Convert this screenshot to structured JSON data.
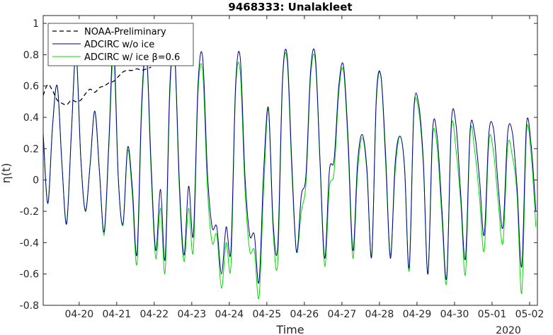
{
  "chart_data": {
    "type": "line",
    "title": "9468333: Unalakleet",
    "xlabel": "Time",
    "ylabel": "η(t)",
    "year_label": "2020",
    "xlim": [
      "2020-04-19T01:00",
      "2020-05-02T05:00"
    ],
    "ylim": [
      -0.8,
      1.05
    ],
    "x_ticks": [
      {
        "date": "2020-04-20",
        "label": "04-20"
      },
      {
        "date": "2020-04-21",
        "label": "04-21"
      },
      {
        "date": "2020-04-22",
        "label": "04-22"
      },
      {
        "date": "2020-04-23",
        "label": "04-23"
      },
      {
        "date": "2020-04-24",
        "label": "04-24"
      },
      {
        "date": "2020-04-25",
        "label": "04-25"
      },
      {
        "date": "2020-04-26",
        "label": "04-26"
      },
      {
        "date": "2020-04-27",
        "label": "04-27"
      },
      {
        "date": "2020-04-28",
        "label": "04-28"
      },
      {
        "date": "2020-04-29",
        "label": "04-29"
      },
      {
        "date": "2020-04-30",
        "label": "04-30"
      },
      {
        "date": "2020-05-01",
        "label": "05-01"
      },
      {
        "date": "2020-05-02",
        "label": "05-02"
      }
    ],
    "y_ticks": [
      {
        "value": -0.8,
        "label": "-0.8"
      },
      {
        "value": -0.6,
        "label": "-0.6"
      },
      {
        "value": -0.4,
        "label": "-0.4"
      },
      {
        "value": -0.2,
        "label": "-0.2"
      },
      {
        "value": 0,
        "label": "0"
      },
      {
        "value": 0.2,
        "label": "0.2"
      },
      {
        "value": 0.4,
        "label": "0.4"
      },
      {
        "value": 0.6,
        "label": "0.6"
      },
      {
        "value": 0.8,
        "label": "0.8"
      },
      {
        "value": 1,
        "label": "1"
      }
    ],
    "grid": false,
    "legend_position": "top-left",
    "series": [
      {
        "name": "NOAA-Preliminary",
        "color": "#000000",
        "dash": "dashed",
        "x": [
          "2020-04-19T01:00",
          "2020-04-19T04:00",
          "2020-04-19T07:00",
          "2020-04-19T10:00",
          "2020-04-19T13:00",
          "2020-04-19T16:00",
          "2020-04-19T19:00",
          "2020-04-19T22:00",
          "2020-04-20T01:00",
          "2020-04-20T04:00",
          "2020-04-20T07:00",
          "2020-04-20T10:00",
          "2020-04-20T13:00",
          "2020-04-20T16:00",
          "2020-04-20T19:00",
          "2020-04-20T22:00",
          "2020-04-21T01:00",
          "2020-04-21T04:00",
          "2020-04-21T07:00",
          "2020-04-21T10:00",
          "2020-04-21T13:00",
          "2020-04-21T16:00",
          "2020-04-21T19:00",
          "2020-04-21T22:00"
        ],
        "y": [
          0.54,
          0.61,
          0.57,
          0.51,
          0.49,
          0.48,
          0.51,
          0.5,
          0.51,
          0.55,
          0.58,
          0.56,
          0.59,
          0.6,
          0.62,
          0.63,
          0.66,
          0.69,
          0.7,
          0.7,
          0.71,
          0.7,
          0.71,
          0.72
        ]
      },
      {
        "name": "ADCIRC w/o ice",
        "color": "#00008b",
        "dash": "solid",
        "x": [
          "2020-04-19T01:00",
          "2020-04-19T04:00",
          "2020-04-19T07:00",
          "2020-04-19T10:00",
          "2020-04-19T13:00",
          "2020-04-19T16:00",
          "2020-04-19T19:00",
          "2020-04-19T22:00",
          "2020-04-20T01:00",
          "2020-04-20T04:00",
          "2020-04-20T07:00",
          "2020-04-20T10:00",
          "2020-04-20T13:00",
          "2020-04-20T16:00",
          "2020-04-20T19:00",
          "2020-04-20T22:00",
          "2020-04-21T01:00",
          "2020-04-21T04:00",
          "2020-04-21T07:00",
          "2020-04-21T10:00",
          "2020-04-21T13:00",
          "2020-04-21T16:00",
          "2020-04-21T19:00",
          "2020-04-21T22:00",
          "2020-04-22T01:00",
          "2020-04-22T04:00",
          "2020-04-22T07:00",
          "2020-04-22T10:00",
          "2020-04-22T13:00",
          "2020-04-22T16:00",
          "2020-04-22T19:00",
          "2020-04-22T22:00",
          "2020-04-23T01:00",
          "2020-04-23T04:00",
          "2020-04-23T07:00",
          "2020-04-23T10:00",
          "2020-04-23T13:00",
          "2020-04-23T16:00",
          "2020-04-23T19:00",
          "2020-04-23T22:00",
          "2020-04-24T01:00",
          "2020-04-24T04:00",
          "2020-04-24T07:00",
          "2020-04-24T10:00",
          "2020-04-24T13:00",
          "2020-04-24T16:00",
          "2020-04-24T19:00",
          "2020-04-24T22:00",
          "2020-04-25T01:00",
          "2020-04-25T04:00",
          "2020-04-25T07:00",
          "2020-04-25T10:00",
          "2020-04-25T13:00",
          "2020-04-25T16:00",
          "2020-04-25T19:00",
          "2020-04-25T22:00",
          "2020-04-26T01:00",
          "2020-04-26T04:00",
          "2020-04-26T07:00",
          "2020-04-26T10:00",
          "2020-04-26T13:00",
          "2020-04-26T16:00",
          "2020-04-26T19:00",
          "2020-04-26T22:00",
          "2020-04-27T01:00",
          "2020-04-27T04:00",
          "2020-04-27T07:00",
          "2020-04-27T10:00",
          "2020-04-27T13:00",
          "2020-04-27T16:00",
          "2020-04-27T19:00",
          "2020-04-27T22:00",
          "2020-04-28T01:00",
          "2020-04-28T04:00",
          "2020-04-28T07:00",
          "2020-04-28T10:00",
          "2020-04-28T13:00",
          "2020-04-28T16:00",
          "2020-04-28T19:00",
          "2020-04-28T22:00",
          "2020-04-29T01:00",
          "2020-04-29T04:00",
          "2020-04-29T07:00",
          "2020-04-29T10:00",
          "2020-04-29T13:00",
          "2020-04-29T16:00",
          "2020-04-29T19:00",
          "2020-04-29T22:00",
          "2020-04-30T01:00",
          "2020-04-30T04:00",
          "2020-04-30T07:00",
          "2020-04-30T10:00",
          "2020-04-30T13:00",
          "2020-04-30T16:00",
          "2020-04-30T19:00",
          "2020-04-30T22:00",
          "2020-05-01T01:00",
          "2020-05-01T04:00",
          "2020-05-01T07:00",
          "2020-05-01T10:00",
          "2020-05-01T13:00",
          "2020-05-01T16:00",
          "2020-05-01T19:00",
          "2020-05-01T22:00",
          "2020-05-02T01:00",
          "2020-05-02T04:00"
        ],
        "y": [
          0.3,
          -0.15,
          0.35,
          0.6,
          0.1,
          -0.28,
          0.3,
          0.82,
          0.15,
          -0.2,
          0.1,
          0.44,
          0.05,
          -0.33,
          0.25,
          0.88,
          0.02,
          -0.28,
          0.21,
          -0.05,
          -0.47,
          0.5,
          0.82,
          0.1,
          -0.45,
          -0.06,
          -0.5,
          0.6,
          0.82,
          0.0,
          -0.48,
          -0.04,
          -0.35,
          0.61,
          0.78,
          0.05,
          -0.3,
          -0.3,
          -0.6,
          -0.3,
          -0.45,
          0.6,
          0.78,
          0.03,
          -0.35,
          -0.35,
          -0.65,
          0.06,
          0.46,
          -0.27,
          -0.42,
          0.64,
          0.79,
          0.1,
          -0.46,
          -0.1,
          0.03,
          0.7,
          0.79,
          0.12,
          -0.5,
          0.06,
          0.13,
          0.6,
          0.73,
          0.25,
          -0.45,
          0.11,
          0.29,
          0.07,
          -0.49,
          0.53,
          0.66,
          0.15,
          -0.5,
          0.1,
          0.28,
          0.09,
          -0.56,
          0.45,
          0.49,
          0.13,
          -0.6,
          0.32,
          0.27,
          -0.2,
          -0.62,
          0.37,
          0.35,
          -0.1,
          -0.5,
          0.32,
          0.29,
          0.0,
          -0.35,
          0.3,
          0.32,
          -0.05,
          -0.3,
          0.3,
          0.3,
          -0.05,
          -0.55,
          0.35,
          0.22,
          -0.2
        ]
      },
      {
        "name": "ADCIRC w/ ice β=0.6",
        "color": "#00dd00",
        "dash": "solid",
        "x": [
          "2020-04-19T01:00",
          "2020-04-19T04:00",
          "2020-04-19T07:00",
          "2020-04-19T10:00",
          "2020-04-19T13:00",
          "2020-04-19T16:00",
          "2020-04-19T19:00",
          "2020-04-19T22:00",
          "2020-04-20T01:00",
          "2020-04-20T04:00",
          "2020-04-20T07:00",
          "2020-04-20T10:00",
          "2020-04-20T13:00",
          "2020-04-20T16:00",
          "2020-04-20T19:00",
          "2020-04-20T22:00",
          "2020-04-21T01:00",
          "2020-04-21T04:00",
          "2020-04-21T07:00",
          "2020-04-21T10:00",
          "2020-04-21T13:00",
          "2020-04-21T16:00",
          "2020-04-21T19:00",
          "2020-04-21T22:00",
          "2020-04-22T01:00",
          "2020-04-22T04:00",
          "2020-04-22T07:00",
          "2020-04-22T10:00",
          "2020-04-22T13:00",
          "2020-04-22T16:00",
          "2020-04-22T19:00",
          "2020-04-22T22:00",
          "2020-04-23T01:00",
          "2020-04-23T04:00",
          "2020-04-23T07:00",
          "2020-04-23T10:00",
          "2020-04-23T13:00",
          "2020-04-23T16:00",
          "2020-04-23T19:00",
          "2020-04-23T22:00",
          "2020-04-24T01:00",
          "2020-04-24T04:00",
          "2020-04-24T07:00",
          "2020-04-24T10:00",
          "2020-04-24T13:00",
          "2020-04-24T16:00",
          "2020-04-24T19:00",
          "2020-04-24T22:00",
          "2020-04-25T01:00",
          "2020-04-25T04:00",
          "2020-04-25T07:00",
          "2020-04-25T10:00",
          "2020-04-25T13:00",
          "2020-04-25T16:00",
          "2020-04-25T19:00",
          "2020-04-25T22:00",
          "2020-04-26T01:00",
          "2020-04-26T04:00",
          "2020-04-26T07:00",
          "2020-04-26T10:00",
          "2020-04-26T13:00",
          "2020-04-26T16:00",
          "2020-04-26T19:00",
          "2020-04-26T22:00",
          "2020-04-27T01:00",
          "2020-04-27T04:00",
          "2020-04-27T07:00",
          "2020-04-27T10:00",
          "2020-04-27T13:00",
          "2020-04-27T16:00",
          "2020-04-27T19:00",
          "2020-04-27T22:00",
          "2020-04-28T01:00",
          "2020-04-28T04:00",
          "2020-04-28T07:00",
          "2020-04-28T10:00",
          "2020-04-28T13:00",
          "2020-04-28T16:00",
          "2020-04-28T19:00",
          "2020-04-28T22:00",
          "2020-04-29T01:00",
          "2020-04-29T04:00",
          "2020-04-29T07:00",
          "2020-04-29T10:00",
          "2020-04-29T13:00",
          "2020-04-29T16:00",
          "2020-04-29T19:00",
          "2020-04-29T22:00",
          "2020-04-30T01:00",
          "2020-04-30T04:00",
          "2020-04-30T07:00",
          "2020-04-30T10:00",
          "2020-04-30T13:00",
          "2020-04-30T16:00",
          "2020-04-30T19:00",
          "2020-04-30T22:00",
          "2020-05-01T01:00",
          "2020-05-01T04:00",
          "2020-05-01T07:00",
          "2020-05-01T10:00",
          "2020-05-01T13:00",
          "2020-05-01T16:00",
          "2020-05-01T19:00",
          "2020-05-01T22:00",
          "2020-05-02T01:00",
          "2020-05-02T04:00"
        ],
        "y": [
          0.28,
          -0.15,
          0.35,
          0.6,
          0.1,
          -0.27,
          0.3,
          0.8,
          0.15,
          -0.19,
          0.1,
          0.44,
          0.05,
          -0.35,
          0.22,
          0.8,
          0.02,
          -0.29,
          0.19,
          -0.1,
          -0.53,
          0.45,
          0.8,
          0.05,
          -0.5,
          -0.18,
          -0.58,
          0.55,
          0.8,
          -0.05,
          -0.52,
          -0.18,
          -0.45,
          0.56,
          0.69,
          -0.05,
          -0.4,
          -0.35,
          -0.69,
          -0.4,
          -0.55,
          0.57,
          0.69,
          -0.05,
          -0.45,
          -0.45,
          -0.75,
          -0.05,
          0.45,
          -0.32,
          -0.52,
          0.62,
          0.76,
          0.05,
          -0.46,
          -0.2,
          -0.02,
          0.66,
          0.76,
          0.1,
          -0.55,
          -0.05,
          0.05,
          0.56,
          0.7,
          0.2,
          -0.5,
          0.05,
          0.27,
          0.05,
          -0.48,
          0.5,
          0.66,
          0.1,
          -0.48,
          0.05,
          0.28,
          0.09,
          -0.58,
          0.43,
          0.45,
          0.1,
          -0.6,
          0.27,
          0.2,
          -0.26,
          -0.65,
          0.33,
          0.19,
          -0.15,
          -0.6,
          0.3,
          0.18,
          -0.12,
          -0.45,
          0.25,
          0.17,
          -0.15,
          -0.4,
          0.22,
          0.15,
          -0.1,
          -0.72,
          0.3,
          0.16,
          -0.3
        ]
      }
    ]
  }
}
